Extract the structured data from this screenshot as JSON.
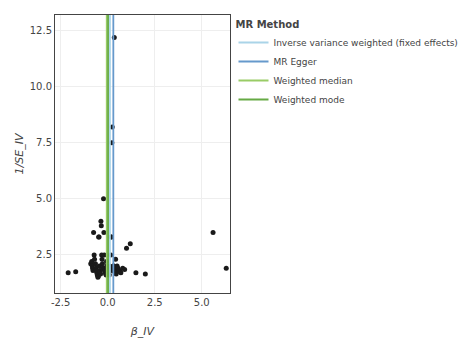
{
  "chart_data": {
    "type": "scatter",
    "xlabel": "β_IV",
    "ylabel": "1/SE_IV",
    "x": [
      -2.1,
      -1.7,
      -0.9,
      -0.85,
      -0.82,
      -0.8,
      -0.78,
      -0.75,
      -0.72,
      -0.7,
      -0.65,
      -0.62,
      -0.6,
      -0.58,
      -0.55,
      -0.52,
      -0.5,
      -0.48,
      -0.46,
      -0.44,
      -0.42,
      -0.4,
      -0.38,
      -0.36,
      -0.34,
      -0.32,
      -0.3,
      -0.28,
      -0.26,
      -0.24,
      -0.22,
      -0.2,
      -0.18,
      -0.16,
      -0.14,
      -0.12,
      -0.1,
      -0.08,
      -0.06,
      -0.04,
      -0.02,
      0.0,
      0.02,
      0.04,
      0.06,
      0.08,
      0.1,
      0.12,
      0.14,
      0.16,
      0.18,
      0.2,
      0.22,
      0.24,
      0.26,
      0.28,
      0.3,
      0.32,
      0.34,
      0.36,
      0.38,
      0.4,
      0.42,
      0.45,
      0.5,
      0.55,
      0.6,
      0.65,
      0.7,
      0.8,
      0.9,
      1.0,
      1.2,
      1.5,
      2.0,
      5.6,
      6.3,
      0.35
    ],
    "values": [
      1.7,
      1.75,
      2.1,
      2.2,
      2.0,
      1.9,
      1.8,
      3.5,
      2.5,
      2.3,
      2.1,
      1.9,
      1.8,
      1.7,
      1.6,
      1.5,
      1.55,
      3.3,
      3.3,
      2.0,
      1.8,
      1.7,
      1.65,
      4.0,
      3.8,
      2.5,
      2.3,
      2.1,
      1.9,
      1.85,
      5.0,
      3.5,
      2.5,
      1.9,
      1.8,
      1.7,
      1.65,
      1.6,
      2.2,
      2.0,
      1.9,
      1.8,
      1.75,
      1.7,
      1.65,
      1.6,
      2.0,
      1.9,
      1.8,
      2.5,
      3.3,
      3.3,
      7.5,
      8.2,
      1.9,
      1.8,
      2.0,
      2.0,
      1.9,
      1.8,
      1.75,
      1.7,
      2.3,
      1.65,
      2.0,
      1.9,
      1.8,
      1.75,
      1.7,
      1.9,
      1.85,
      2.8,
      3.0,
      1.7,
      1.65,
      3.5,
      1.9,
      12.2
    ],
    "color": "#1a1a1a",
    "series": [
      {
        "name": "Inverse variance weighted (fixed effects)",
        "type": "vline",
        "color": "#aad4e8",
        "x": 0.12
      },
      {
        "name": "MR Egger",
        "type": "vline",
        "color": "#6699cc",
        "x": 0.3
      },
      {
        "name": "Weighted median",
        "type": "vline",
        "color": "#99cc66",
        "x": -0.05
      },
      {
        "name": "Weighted mode",
        "type": "vline",
        "color": "#66aa44",
        "x": 0.02
      }
    ],
    "legend_title": "MR Method",
    "legend": "right",
    "xlim": [
      -2.8,
      6.5
    ],
    "ylim": [
      0.8,
      13.2
    ],
    "xticks": [
      -2.5,
      {
        "value": 0,
        "label": "0.0"
      },
      2.5,
      {
        "value": 5,
        "label": "5.0"
      }
    ],
    "yticks": [
      2.5,
      {
        "value": 5,
        "label": "5.0"
      },
      7.5,
      {
        "value": 10,
        "label": "10.0"
      },
      12.5
    ],
    "grid": true
  }
}
